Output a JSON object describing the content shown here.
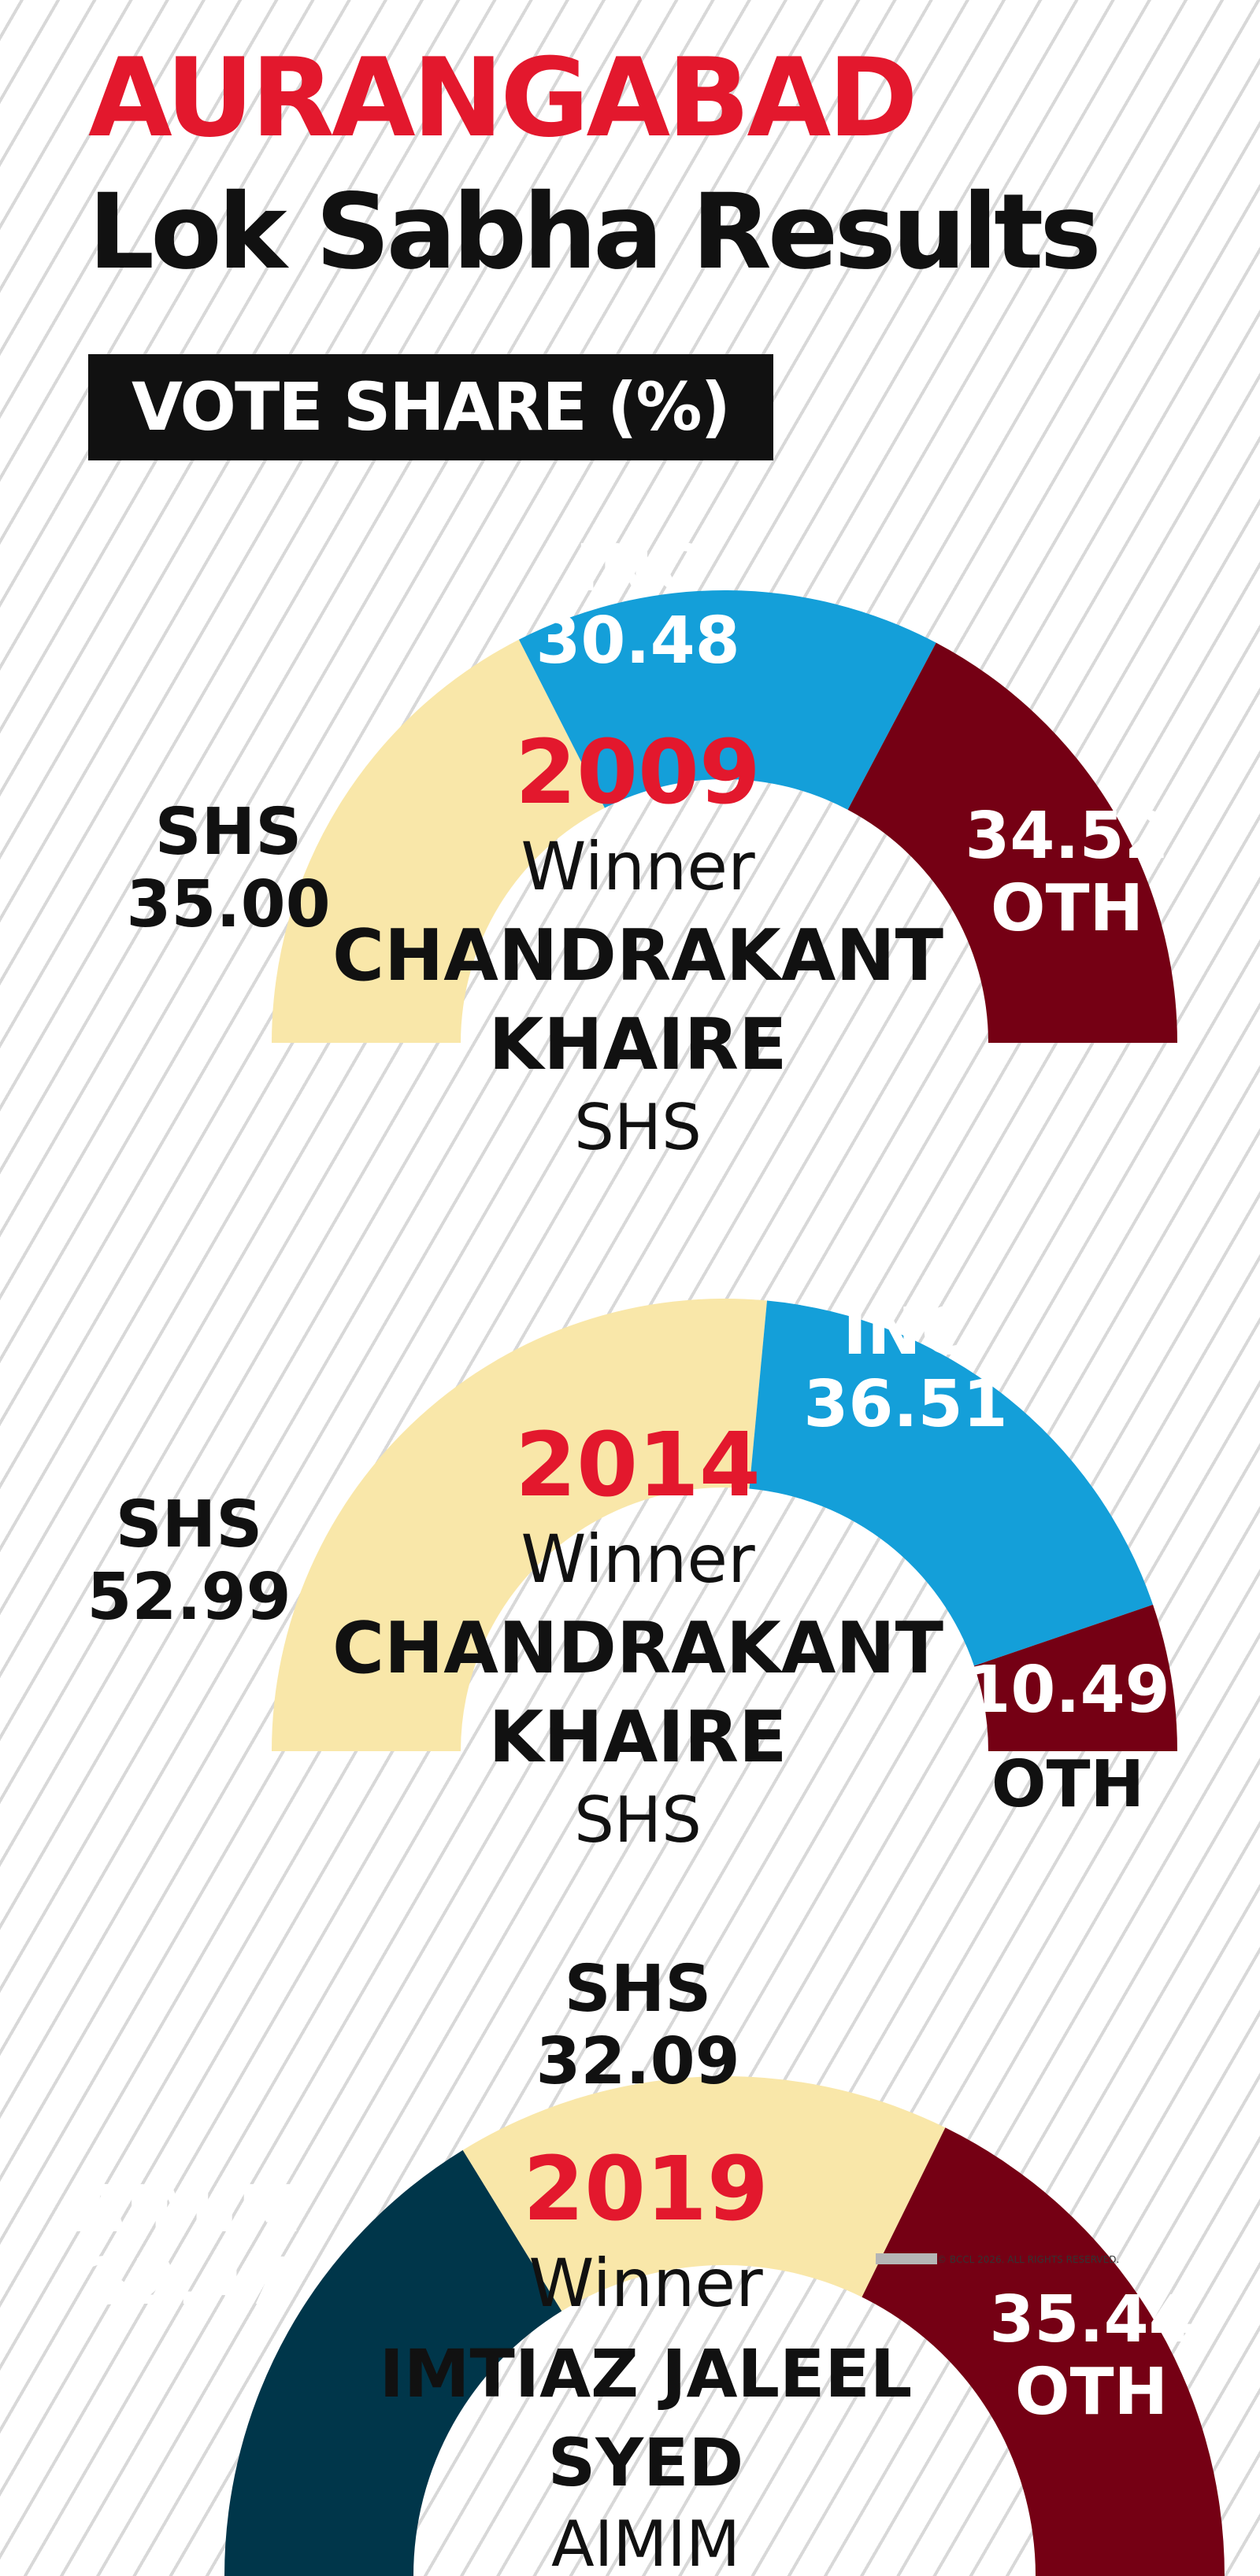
{
  "header": {
    "title": "AURANGABAD",
    "subtitle": "Lok Sabha Results",
    "label": "VOTE SHARE (%)"
  },
  "colors": {
    "SHS": "#f9e7a9",
    "INC": "#149fd9",
    "OTH": "#750014",
    "AIMIM": "#00364a",
    "year": "#e3182d",
    "text": "#111111"
  },
  "copyright": "© BCCL 2026. ALL RIGHTS RESERVED.",
  "chart_data": [
    {
      "type": "pie",
      "style": "semicircle donut",
      "year": "2009",
      "winner_label": "Winner",
      "winner_name": [
        "CHANDRAKANT",
        "KHAIRE"
      ],
      "winner_party": "SHS",
      "slices": [
        {
          "party": "SHS",
          "value": 35.0,
          "value_label": "35.00"
        },
        {
          "party": "INC",
          "value": 30.48,
          "value_label": "30.48"
        },
        {
          "party": "OTH",
          "value": 34.52,
          "value_label": "34.52"
        }
      ]
    },
    {
      "type": "pie",
      "style": "semicircle donut",
      "year": "2014",
      "winner_label": "Winner",
      "winner_name": [
        "CHANDRAKANT",
        "KHAIRE"
      ],
      "winner_party": "SHS",
      "slices": [
        {
          "party": "SHS",
          "value": 52.99,
          "value_label": "52.99"
        },
        {
          "party": "INC",
          "value": 36.51,
          "value_label": "36.51"
        },
        {
          "party": "OTH",
          "value": 10.49,
          "value_label": "10.49"
        }
      ]
    },
    {
      "type": "pie",
      "style": "semicircle donut",
      "year": "2019",
      "winner_label": "Winner",
      "winner_name": [
        "IMTIAZ JALEEL",
        "SYED"
      ],
      "winner_party": "AIMIM",
      "slices": [
        {
          "party": "AIMIM",
          "value": 32.47,
          "value_label": "32.47"
        },
        {
          "party": "SHS",
          "value": 32.09,
          "value_label": "32.09"
        },
        {
          "party": "OTH",
          "value": 35.44,
          "value_label": "35.44"
        }
      ]
    }
  ]
}
